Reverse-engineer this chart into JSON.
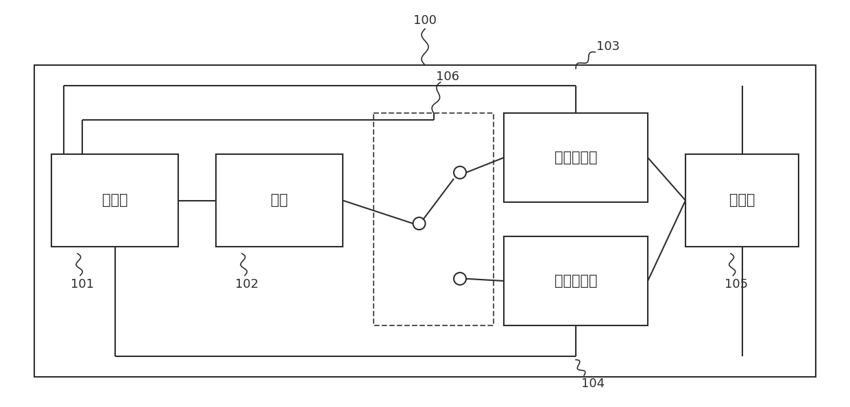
{
  "bg_color": "#ffffff",
  "line_color": "#2d2d2d",
  "dashed_color": "#555555",
  "labels": {
    "processor": "处理器",
    "light_source": "光源",
    "filter1": "第一滤波器",
    "filter2": "第二滤波器",
    "indicator": "指示灯",
    "n100": "100",
    "n101": "101",
    "n102": "102",
    "n103": "103",
    "n104": "104",
    "n105": "105",
    "n106": "106"
  },
  "font_size_label": 15,
  "font_size_number": 13
}
